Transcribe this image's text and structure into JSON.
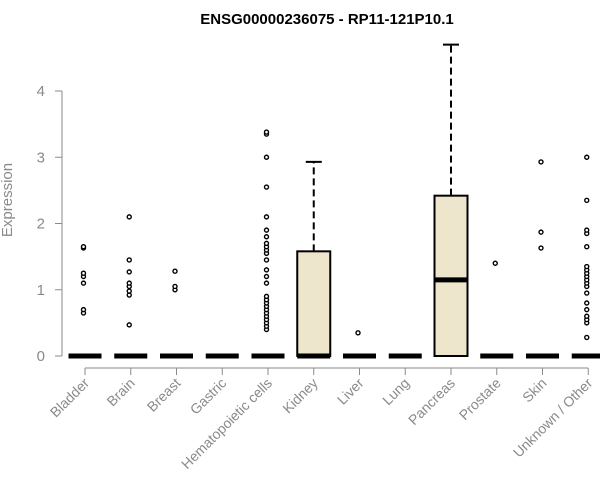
{
  "chart_data": {
    "type": "box",
    "title": "ENSG00000236075 - RP11-121P10.1",
    "xlabel": "",
    "ylabel": "Expression",
    "ylim": [
      0,
      4.75
    ],
    "yticks": [
      0,
      1,
      2,
      3,
      4
    ],
    "box_color": "#ede6cc",
    "categories": [
      "Bladder",
      "Brain",
      "Breast",
      "Gastric",
      "Hematopoietic cells",
      "Kidney",
      "Liver",
      "Lung",
      "Pancreas",
      "Prostate",
      "Skin",
      "Unknown / Other"
    ],
    "boxes": [
      {
        "q1": 0,
        "median": 0,
        "q3": 0,
        "whisker_low": 0,
        "whisker_high": 0,
        "outliers": [
          0.65,
          0.7,
          1.1,
          1.2,
          1.25,
          1.63,
          1.65
        ]
      },
      {
        "q1": 0,
        "median": 0,
        "q3": 0,
        "whisker_low": 0,
        "whisker_high": 0,
        "outliers": [
          0.47,
          0.92,
          0.98,
          1.05,
          1.1,
          1.27,
          1.45,
          2.1
        ]
      },
      {
        "q1": 0,
        "median": 0,
        "q3": 0,
        "whisker_low": 0,
        "whisker_high": 0,
        "outliers": [
          1.0,
          1.05,
          1.28
        ]
      },
      {
        "q1": 0,
        "median": 0,
        "q3": 0,
        "whisker_low": 0,
        "whisker_high": 0,
        "outliers": []
      },
      {
        "q1": 0,
        "median": 0,
        "q3": 0,
        "whisker_low": 0,
        "whisker_high": 0,
        "outliers": [
          0.4,
          0.45,
          0.5,
          0.55,
          0.6,
          0.65,
          0.7,
          0.75,
          0.8,
          0.85,
          0.9,
          1.1,
          1.2,
          1.3,
          1.45,
          1.55,
          1.6,
          1.65,
          1.7,
          1.8,
          1.9,
          2.1,
          2.55,
          3.0,
          3.35,
          3.38
        ]
      },
      {
        "q1": 0,
        "median": 0,
        "q3": 1.58,
        "whisker_low": 0,
        "whisker_high": 2.93,
        "outliers": []
      },
      {
        "q1": 0,
        "median": 0,
        "q3": 0,
        "whisker_low": 0,
        "whisker_high": 0,
        "outliers": [
          0.35
        ]
      },
      {
        "q1": 0,
        "median": 0,
        "q3": 0,
        "whisker_low": 0,
        "whisker_high": 0,
        "outliers": []
      },
      {
        "q1": 0,
        "median": 1.15,
        "q3": 2.42,
        "whisker_low": 0,
        "whisker_high": 4.7,
        "outliers": []
      },
      {
        "q1": 0,
        "median": 0,
        "q3": 0,
        "whisker_low": 0,
        "whisker_high": 0,
        "outliers": [
          1.4
        ]
      },
      {
        "q1": 0,
        "median": 0,
        "q3": 0,
        "whisker_low": 0,
        "whisker_high": 0,
        "outliers": [
          1.63,
          1.87,
          2.93
        ]
      },
      {
        "q1": 0,
        "median": 0,
        "q3": 0,
        "whisker_low": 0,
        "whisker_high": 0,
        "outliers": [
          0.28,
          0.5,
          0.55,
          0.6,
          0.7,
          0.8,
          0.95,
          1.05,
          1.1,
          1.15,
          1.2,
          1.25,
          1.3,
          1.35,
          1.65,
          1.85,
          1.9,
          2.35,
          3.0
        ]
      }
    ]
  }
}
